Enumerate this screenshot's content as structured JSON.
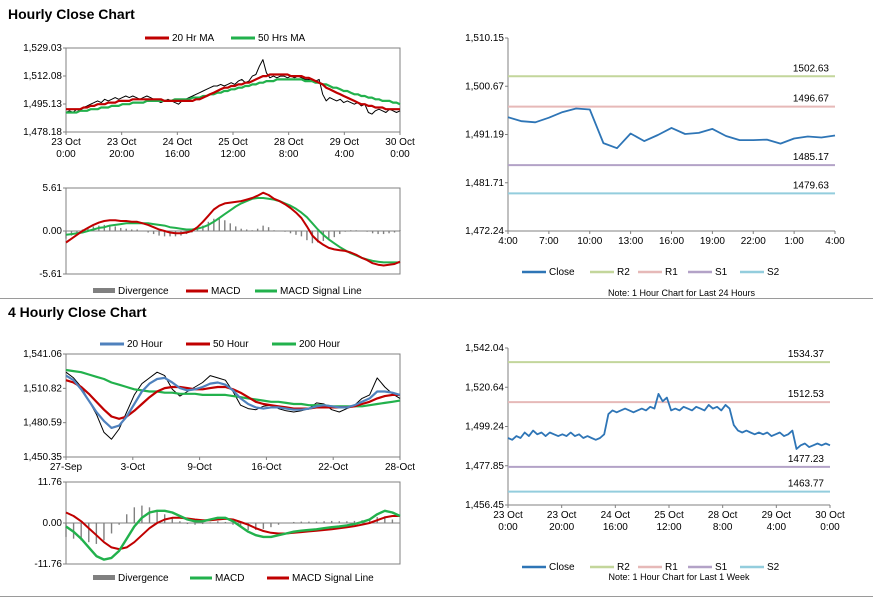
{
  "sections": [
    {
      "title": "Hourly Close Chart"
    },
    {
      "title": "4 Hourly Close Chart"
    }
  ],
  "chart_data": [
    {
      "id": "hourly_price",
      "type": "line",
      "title": "",
      "legend": [
        "20 Hr MA",
        "50 Hrs MA"
      ],
      "legend_placement": "top",
      "colors": {
        "price": "#000000",
        "ma20": "#c00000",
        "ma50": "#22b14c"
      },
      "ylim": [
        1478.18,
        1529.03
      ],
      "yticks": [
        "1,529.03",
        "1,512.08",
        "1,495.13",
        "1,478.18"
      ],
      "xticks": [
        [
          "23 Oct",
          "0:00"
        ],
        [
          "23 Oct",
          "20:00"
        ],
        [
          "24 Oct",
          "16:00"
        ],
        [
          "25 Oct",
          "12:00"
        ],
        [
          "28 Oct",
          "8:00"
        ],
        [
          "29 Oct",
          "4:00"
        ],
        [
          "30 Oct",
          "0:00"
        ]
      ],
      "xlim": [
        0,
        168
      ],
      "price": [
        1490,
        1491,
        1490,
        1492,
        1491,
        1493,
        1494,
        1495,
        1496,
        1497,
        1496,
        1498,
        1497,
        1498,
        1499,
        1498,
        1499,
        1500,
        1499,
        1500,
        1499,
        1498,
        1499,
        1500,
        1499,
        1498,
        1497,
        1496,
        1497,
        1498,
        1497,
        1496,
        1495,
        1497,
        1498,
        1499,
        1500,
        1501,
        1502,
        1503,
        1504,
        1505,
        1506,
        1506,
        1507,
        1506,
        1507,
        1508,
        1507,
        1509,
        1510,
        1508,
        1509,
        1512,
        1513,
        1518,
        1522,
        1514,
        1511,
        1512,
        1511,
        1512,
        1512,
        1511,
        1512,
        1511,
        1512,
        1511,
        1510,
        1510,
        1509,
        1509,
        1510,
        1501,
        1497,
        1499,
        1498,
        1497,
        1498,
        1496,
        1497,
        1496,
        1495,
        1496,
        1494,
        1495,
        1490,
        1489,
        1491,
        1492,
        1491,
        1490,
        1492,
        1491,
        1490,
        1491
      ],
      "ma20": [
        1492,
        1492,
        1492,
        1492,
        1492,
        1493,
        1493,
        1494,
        1494,
        1495,
        1495,
        1495,
        1496,
        1496,
        1496,
        1497,
        1497,
        1497,
        1497,
        1498,
        1498,
        1498,
        1498,
        1498,
        1498,
        1498,
        1498,
        1498,
        1497,
        1497,
        1497,
        1497,
        1497,
        1497,
        1497,
        1497,
        1497,
        1498,
        1498,
        1499,
        1500,
        1501,
        1502,
        1503,
        1504,
        1505,
        1505,
        1506,
        1506,
        1507,
        1507,
        1508,
        1508,
        1509,
        1510,
        1511,
        1512,
        1512,
        1513,
        1513,
        1513,
        1513,
        1513,
        1513,
        1512,
        1512,
        1512,
        1512,
        1511,
        1511,
        1510,
        1509,
        1508,
        1507,
        1505,
        1504,
        1503,
        1502,
        1501,
        1500,
        1499,
        1498,
        1497,
        1496,
        1495,
        1495,
        1494,
        1494,
        1493,
        1493,
        1493,
        1492,
        1492,
        1492,
        1492,
        1492
      ],
      "ma50": [
        1490,
        1490,
        1490,
        1490,
        1491,
        1491,
        1491,
        1492,
        1492,
        1492,
        1493,
        1493,
        1493,
        1494,
        1494,
        1494,
        1495,
        1495,
        1495,
        1496,
        1496,
        1496,
        1496,
        1497,
        1497,
        1497,
        1497,
        1497,
        1497,
        1497,
        1497,
        1498,
        1498,
        1498,
        1498,
        1498,
        1499,
        1499,
        1499,
        1500,
        1500,
        1501,
        1501,
        1502,
        1502,
        1503,
        1503,
        1504,
        1504,
        1505,
        1505,
        1506,
        1506,
        1507,
        1507,
        1508,
        1508,
        1509,
        1509,
        1509,
        1510,
        1510,
        1510,
        1510,
        1510,
        1510,
        1510,
        1510,
        1509,
        1509,
        1509,
        1508,
        1508,
        1507,
        1507,
        1506,
        1505,
        1505,
        1504,
        1503,
        1503,
        1502,
        1501,
        1501,
        1500,
        1500,
        1499,
        1499,
        1498,
        1498,
        1497,
        1497,
        1497,
        1496,
        1496,
        1495
      ]
    },
    {
      "id": "hourly_macd",
      "type": "bar",
      "title": "",
      "legend": [
        "Divergence",
        "MACD",
        "MACD Signal Line"
      ],
      "legend_placement": "bottom",
      "colors": {
        "divergence": "#808080",
        "macd": "#c00000",
        "signal": "#22b14c"
      },
      "ylim": [
        -5.61,
        5.61
      ],
      "yticks": [
        "5.61",
        "0.00",
        "-5.61"
      ],
      "macd": [
        -1.5,
        -1.0,
        -0.5,
        0.0,
        0.4,
        0.8,
        1.1,
        1.3,
        1.4,
        1.4,
        1.3,
        1.3,
        1.2,
        1.2,
        1.0,
        0.8,
        0.5,
        0.2,
        0.0,
        -0.2,
        -0.3,
        -0.3,
        -0.2,
        0.0,
        0.5,
        1.2,
        2.0,
        2.8,
        3.3,
        3.6,
        3.7,
        3.8,
        3.9,
        4.1,
        4.3,
        4.6,
        5.0,
        4.7,
        4.2,
        3.9,
        3.5,
        3.0,
        2.4,
        1.7,
        0.6,
        -0.6,
        -1.3,
        -1.8,
        -2.2,
        -2.4,
        -2.5,
        -2.6,
        -2.8,
        -3.1,
        -3.5,
        -3.8,
        -4.2,
        -4.4,
        -4.5,
        -4.4,
        -4.3,
        -4.0
      ],
      "signal": [
        -0.5,
        -0.4,
        -0.3,
        -0.2,
        0.0,
        0.2,
        0.4,
        0.5,
        0.7,
        0.8,
        0.9,
        1.0,
        1.0,
        1.0,
        1.0,
        1.0,
        0.9,
        0.8,
        0.7,
        0.5,
        0.4,
        0.3,
        0.2,
        0.2,
        0.3,
        0.5,
        0.8,
        1.2,
        1.7,
        2.2,
        2.7,
        3.2,
        3.6,
        3.9,
        4.2,
        4.3,
        4.3,
        4.2,
        4.1,
        3.9,
        3.6,
        3.3,
        2.9,
        2.4,
        1.8,
        1.0,
        0.2,
        -0.5,
        -1.1,
        -1.6,
        -2.1,
        -2.5,
        -2.9,
        -3.2,
        -3.5,
        -3.7,
        -3.9,
        -4.0,
        -4.1,
        -4.1,
        -4.1,
        -4.1
      ]
    },
    {
      "id": "hourly_levels",
      "type": "line",
      "title": "",
      "legend": [
        "Close",
        "R2",
        "R1",
        "S1",
        "S2"
      ],
      "legend_placement": "bottom",
      "note": "Note: 1 Hour Chart for Last 24 Hours",
      "colors": {
        "close": "#2e75b6",
        "r2": "#c3d69b",
        "r1": "#e6b9b8",
        "s1": "#b3a2c7",
        "s2": "#93cddd"
      },
      "ylim": [
        1472.24,
        1510.15
      ],
      "yticks": [
        "1,510.15",
        "1,500.67",
        "1,491.19",
        "1,481.71",
        "1,472.24"
      ],
      "xticks": [
        "4:00",
        "7:00",
        "10:00",
        "13:00",
        "16:00",
        "19:00",
        "22:00",
        "1:00",
        "4:00"
      ],
      "xlim": [
        0,
        24
      ],
      "levels": {
        "R2": 1502.63,
        "R1": 1496.67,
        "S1": 1485.17,
        "S2": 1479.63
      },
      "level_labels": [
        "1502.63",
        "1496.67",
        "1485.17",
        "1479.63"
      ],
      "close": [
        1494.6,
        1493.8,
        1493.6,
        1494.5,
        1495.6,
        1496.3,
        1496.1,
        1489.5,
        1488.5,
        1491.4,
        1489.9,
        1491.1,
        1492.5,
        1491.3,
        1491.5,
        1492.3,
        1490.9,
        1490.1,
        1490.1,
        1490.2,
        1489.4,
        1490.4,
        1490.8,
        1490.6,
        1491.0
      ]
    },
    {
      "id": "four_hourly_price",
      "type": "line",
      "title": "",
      "legend": [
        "20 Hour",
        "50 Hour",
        "200 Hour"
      ],
      "legend_placement": "top",
      "colors": {
        "price": "#000000",
        "ma20": "#4f81bd",
        "ma50": "#c00000",
        "ma200": "#22b14c"
      },
      "ylim": [
        1450.35,
        1541.06
      ],
      "yticks": [
        "1,541.06",
        "1,510.82",
        "1,480.59",
        "1,450.35"
      ],
      "xticks": [
        "27-Sep",
        "3-Oct",
        "9-Oct",
        "16-Oct",
        "22-Oct",
        "28-Oct"
      ],
      "xlim": [
        0,
        31
      ],
      "price": [
        1525,
        1520,
        1512,
        1500,
        1488,
        1472,
        1466,
        1475,
        1490,
        1505,
        1515,
        1520,
        1525,
        1522,
        1510,
        1504,
        1508,
        1512,
        1516,
        1522,
        1520,
        1518,
        1508,
        1496,
        1493,
        1492,
        1495,
        1496,
        1493,
        1491,
        1490,
        1491,
        1493,
        1498,
        1497,
        1492,
        1490,
        1493,
        1496,
        1502,
        1505,
        1520,
        1512,
        1506,
        1502
      ],
      "ma20": [
        1522,
        1518,
        1510,
        1500,
        1490,
        1482,
        1476,
        1478,
        1486,
        1497,
        1508,
        1515,
        1519,
        1520,
        1516,
        1511,
        1509,
        1510,
        1512,
        1515,
        1516,
        1514,
        1509,
        1502,
        1497,
        1494,
        1493,
        1494,
        1494,
        1493,
        1492,
        1492,
        1493,
        1495,
        1496,
        1495,
        1494,
        1494,
        1496,
        1499,
        1502,
        1508,
        1508,
        1507,
        1505
      ],
      "ma50": [
        1518,
        1516,
        1512,
        1506,
        1499,
        1492,
        1486,
        1484,
        1486,
        1491,
        1497,
        1503,
        1508,
        1511,
        1512,
        1512,
        1511,
        1510,
        1510,
        1511,
        1512,
        1512,
        1510,
        1507,
        1503,
        1499,
        1497,
        1496,
        1495,
        1494,
        1493,
        1493,
        1493,
        1494,
        1494,
        1494,
        1494,
        1494,
        1495,
        1497,
        1499,
        1502,
        1504,
        1505,
        1505
      ],
      "ma200": [
        1527,
        1526,
        1525,
        1523,
        1521,
        1519,
        1516,
        1514,
        1512,
        1510,
        1509,
        1508,
        1508,
        1507,
        1507,
        1506,
        1506,
        1506,
        1505,
        1505,
        1505,
        1505,
        1504,
        1503,
        1502,
        1501,
        1500,
        1499,
        1499,
        1498,
        1497,
        1497,
        1496,
        1496,
        1496,
        1495,
        1495,
        1495,
        1495,
        1495,
        1496,
        1497,
        1498,
        1499,
        1500
      ]
    },
    {
      "id": "four_hourly_macd",
      "type": "bar",
      "title": "",
      "legend": [
        "Divergence",
        "MACD",
        "MACD Signal Line"
      ],
      "legend_placement": "bottom",
      "colors": {
        "divergence": "#808080",
        "macd": "#22b14c",
        "signal": "#c00000"
      },
      "ylim": [
        -11.76,
        11.76
      ],
      "yticks": [
        "11.76",
        "0.00",
        "-11.76"
      ],
      "macd": [
        -1.0,
        -2.5,
        -4.5,
        -7.0,
        -9.5,
        -10.5,
        -10.0,
        -8.0,
        -4.5,
        -1.0,
        1.5,
        3.0,
        3.5,
        3.5,
        3.0,
        2.0,
        1.0,
        0.5,
        0.5,
        1.0,
        1.5,
        1.5,
        0.5,
        -1.0,
        -2.5,
        -3.5,
        -4.0,
        -4.0,
        -3.5,
        -3.0,
        -2.5,
        -2.2,
        -2.0,
        -1.8,
        -1.5,
        -1.2,
        -1.0,
        -0.7,
        -0.3,
        0.3,
        1.0,
        2.5,
        3.5,
        3.0,
        2.0
      ],
      "signal": [
        3.0,
        2.0,
        0.5,
        -1.5,
        -3.5,
        -5.5,
        -7.0,
        -7.5,
        -7.0,
        -5.5,
        -3.5,
        -1.5,
        0.0,
        1.0,
        1.5,
        1.5,
        1.3,
        1.0,
        0.8,
        0.8,
        1.0,
        1.2,
        1.0,
        0.3,
        -0.5,
        -1.5,
        -2.3,
        -2.8,
        -3.0,
        -3.0,
        -2.8,
        -2.6,
        -2.4,
        -2.2,
        -2.0,
        -1.8,
        -1.5,
        -1.2,
        -0.9,
        -0.5,
        0.0,
        0.8,
        1.6,
        2.0,
        2.0
      ]
    },
    {
      "id": "four_hourly_levels",
      "type": "line",
      "title": "",
      "legend": [
        "Close",
        "R2",
        "R1",
        "S1",
        "S2"
      ],
      "legend_placement": "bottom",
      "note": "Note: 1 Hour Chart for Last 1 Week",
      "colors": {
        "close": "#2e75b6",
        "r2": "#c3d69b",
        "r1": "#e6b9b8",
        "s1": "#b3a2c7",
        "s2": "#93cddd"
      },
      "ylim": [
        1456.45,
        1542.04
      ],
      "yticks": [
        "1,542.04",
        "1,520.64",
        "1,499.24",
        "1,477.85",
        "1,456.45"
      ],
      "xticks": [
        [
          "23 Oct",
          "0:00"
        ],
        [
          "23 Oct",
          "20:00"
        ],
        [
          "24 Oct",
          "16:00"
        ],
        [
          "25 Oct",
          "12:00"
        ],
        [
          "28 Oct",
          "8:00"
        ],
        [
          "29 Oct",
          "4:00"
        ],
        [
          "30 Oct",
          "0:00"
        ]
      ],
      "xlim": [
        0,
        168
      ],
      "levels": {
        "R2": 1534.37,
        "R1": 1512.53,
        "S1": 1477.23,
        "S2": 1463.77
      },
      "level_labels": [
        "1534.37",
        "1512.53",
        "1477.23",
        "1463.77"
      ],
      "close": [
        1493,
        1492,
        1494,
        1493,
        1496,
        1494,
        1497,
        1495,
        1496,
        1494,
        1496,
        1495,
        1494,
        1495,
        1494,
        1496,
        1494,
        1495,
        1493,
        1494,
        1493,
        1492,
        1493,
        1495,
        1506,
        1508,
        1507,
        1508,
        1509,
        1508,
        1507,
        1508,
        1509,
        1508,
        1510,
        1509,
        1517,
        1513,
        1515,
        1508,
        1509,
        1508,
        1510,
        1509,
        1508,
        1510,
        1509,
        1508,
        1511,
        1509,
        1510,
        1508,
        1511,
        1509,
        1500,
        1497,
        1496,
        1497,
        1496,
        1495,
        1496,
        1495,
        1496,
        1494,
        1495,
        1496,
        1494,
        1495,
        1497,
        1487,
        1489,
        1490,
        1488,
        1489,
        1490,
        1489,
        1490,
        1489
      ]
    }
  ]
}
